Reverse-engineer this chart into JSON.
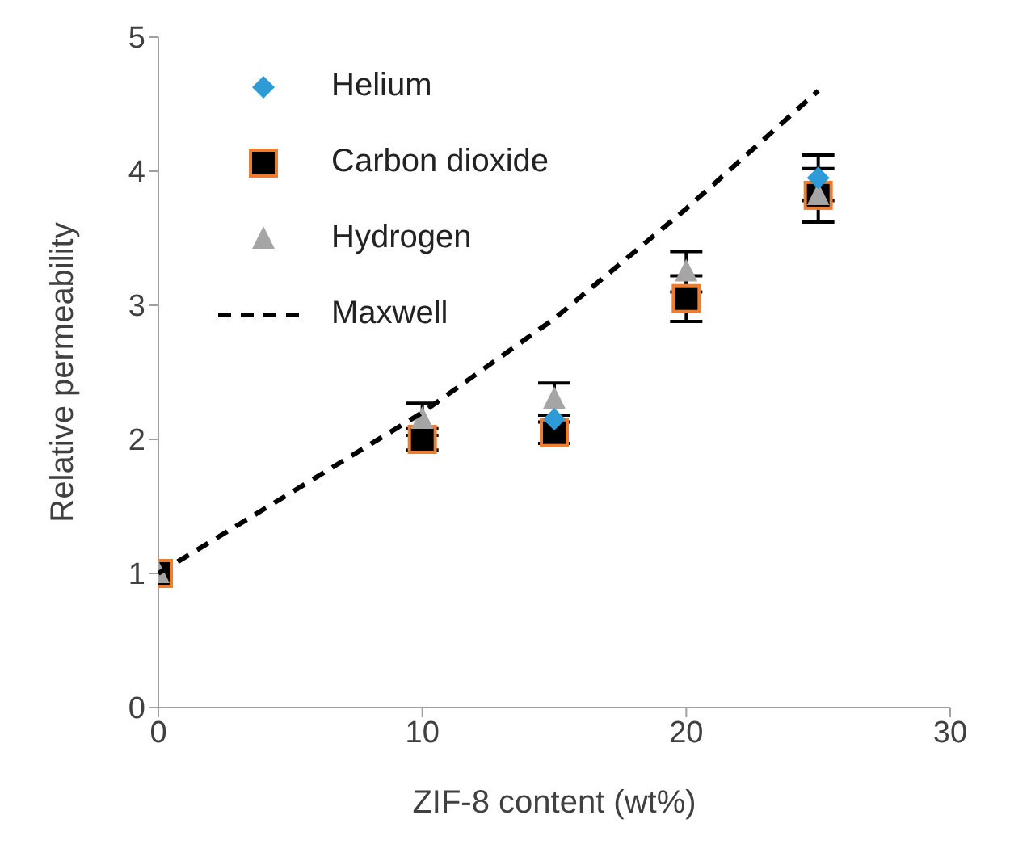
{
  "chart_data": {
    "type": "scatter",
    "xlabel": "ZIF-8 content (wt%)",
    "ylabel": "Relative permeability",
    "x": [
      0,
      10,
      15,
      20,
      25
    ],
    "series": [
      {
        "name": "Helium",
        "color": "#2e9bd6",
        "marker": "diamond",
        "values": [
          null,
          null,
          2.15,
          null,
          3.95
        ],
        "errors": [
          null,
          null,
          null,
          null,
          0.17
        ]
      },
      {
        "name": "Carbon dioxide",
        "color": "#000000",
        "marker": "square",
        "values": [
          1,
          2.0,
          2.05,
          3.05,
          3.82
        ],
        "errors": [
          null,
          0.08,
          0.08,
          0.17,
          0.2
        ]
      },
      {
        "name": "Hydrogen",
        "color": "#a5a5a5",
        "marker": "triangle",
        "values": [
          1,
          2.15,
          2.3,
          3.25,
          3.82
        ],
        "errors": [
          null,
          0.12,
          0.12,
          0.15,
          null
        ]
      },
      {
        "name": "Maxwell",
        "type": "line",
        "color": "#000000",
        "line_style": "dashed",
        "marker": "none",
        "values": [
          1,
          2.2,
          2.9,
          3.72,
          4.6
        ]
      }
    ],
    "xlim": [
      0,
      30
    ],
    "xticks": [
      0,
      10,
      20,
      30
    ],
    "ylim": [
      0,
      5
    ],
    "yticks": [
      0,
      1,
      2,
      3,
      4,
      5
    ],
    "legend": "top left"
  }
}
